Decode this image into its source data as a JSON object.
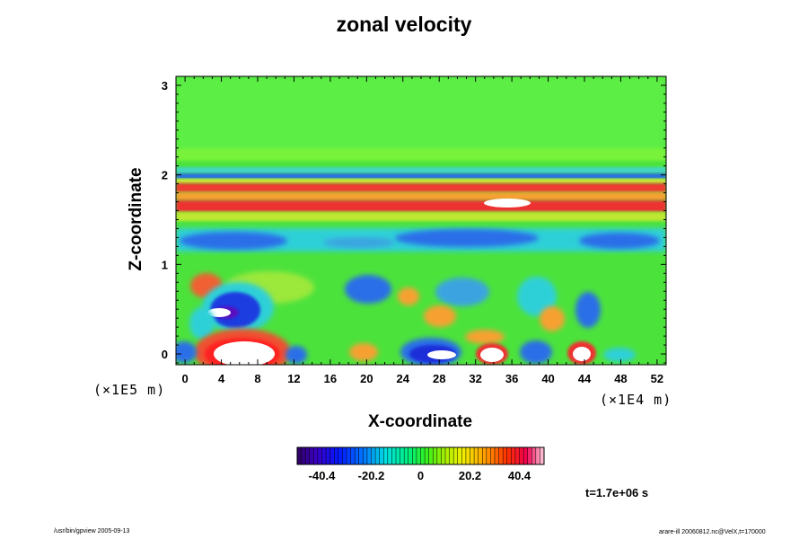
{
  "chart_data": {
    "type": "heatmap",
    "title": "zonal velocity",
    "xlabel": "X-coordinate",
    "ylabel": "Z-coordinate",
    "x_ticks": [
      "0",
      "4",
      "8",
      "12",
      "16",
      "20",
      "24",
      "28",
      "32",
      "36",
      "40",
      "44",
      "48",
      "52"
    ],
    "y_ticks": [
      "0",
      "1",
      "2",
      "3"
    ],
    "xlim": [
      -1,
      53
    ],
    "ylim": [
      -0.12,
      3.1
    ],
    "x_unit": "(×1E4 m)",
    "y_unit": "(×1E5 m)",
    "colorbar": {
      "ticks": [
        "-40.4",
        "-20.2",
        "0",
        "20.2",
        "40.4"
      ],
      "tick_values": [
        -40.4,
        -20.2,
        0,
        20.2,
        40.4
      ],
      "range": [
        -50.5,
        50.5
      ]
    },
    "time_label": "t=1.7e+06 s",
    "features": [
      {
        "x": 0,
        "z": 3.1,
        "value": 2
      },
      {
        "x": 26,
        "z": 1.97,
        "value": -20
      },
      {
        "x": 26,
        "z": 1.86,
        "value": 38
      },
      {
        "x": 26,
        "z": 1.66,
        "value": 42
      },
      {
        "x": 35,
        "z": 1.66,
        "value": 55
      },
      {
        "x": 26,
        "z": 1.3,
        "value": -28
      },
      {
        "x": 5,
        "z": 0.45,
        "value": -44
      },
      {
        "x": 5,
        "z": 0.08,
        "value": 55
      },
      {
        "x": 28,
        "z": 0.02,
        "value": -50
      },
      {
        "x": 33,
        "z": 0.02,
        "value": 48
      },
      {
        "x": 38,
        "z": 0.03,
        "value": -38
      },
      {
        "x": 43,
        "z": 0.02,
        "value": 50
      }
    ]
  },
  "footer": {
    "left": "/usr/bin/gpview 2005-09-13",
    "right": "arare-ill 20060812.nc@VelX,t=170000"
  }
}
